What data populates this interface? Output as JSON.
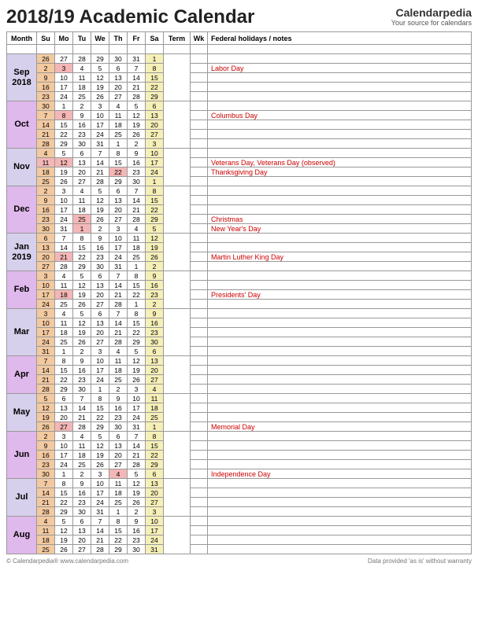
{
  "title": "2018/19 Academic Calendar",
  "brand": {
    "name": "Calendarpedia",
    "tagline": "Your source for calendars"
  },
  "header_row": [
    "Month",
    "Su",
    "Mo",
    "Tu",
    "We",
    "Th",
    "Fr",
    "Sa",
    "Term",
    "Wk",
    "Federal holidays / notes"
  ],
  "colors": {
    "month_fill_a": "#d7d0ec",
    "month_fill_b": "#dfb8ec",
    "sunday_fill": "#f2c9a0",
    "saturday_fill": "#f5efb8",
    "holiday_fill": "#f4b6b6",
    "weekday_fill": "#ffffff",
    "note_text": "#cc0000",
    "border": "#999999",
    "empty_row": "#ffffff"
  },
  "months": [
    {
      "label": "Sep 2018",
      "fill": "#d7d0ec",
      "rows": [
        {
          "days": [
            26,
            27,
            28,
            29,
            30,
            31,
            1
          ],
          "note": ""
        },
        {
          "days": [
            2,
            3,
            4,
            5,
            6,
            7,
            8
          ],
          "note": "Labor Day",
          "hol": [
            1
          ]
        },
        {
          "days": [
            9,
            10,
            11,
            12,
            13,
            14,
            15
          ],
          "note": ""
        },
        {
          "days": [
            16,
            17,
            18,
            19,
            20,
            21,
            22
          ],
          "note": ""
        },
        {
          "days": [
            23,
            24,
            25,
            26,
            27,
            28,
            29
          ],
          "note": ""
        }
      ]
    },
    {
      "label": "Oct",
      "fill": "#dfb8ec",
      "rows": [
        {
          "days": [
            30,
            1,
            2,
            3,
            4,
            5,
            6
          ],
          "note": ""
        },
        {
          "days": [
            7,
            8,
            9,
            10,
            11,
            12,
            13
          ],
          "note": "Columbus Day",
          "hol": [
            1
          ]
        },
        {
          "days": [
            14,
            15,
            16,
            17,
            18,
            19,
            20
          ],
          "note": ""
        },
        {
          "days": [
            21,
            22,
            23,
            24,
            25,
            26,
            27
          ],
          "note": ""
        },
        {
          "days": [
            28,
            29,
            30,
            31,
            1,
            2,
            3
          ],
          "note": ""
        }
      ]
    },
    {
      "label": "Nov",
      "fill": "#d7d0ec",
      "rows": [
        {
          "days": [
            4,
            5,
            6,
            7,
            8,
            9,
            10
          ],
          "note": ""
        },
        {
          "days": [
            11,
            12,
            13,
            14,
            15,
            16,
            17
          ],
          "note": "Veterans Day, Veterans Day (observed)",
          "hol": [
            0,
            1
          ]
        },
        {
          "days": [
            18,
            19,
            20,
            21,
            22,
            23,
            24
          ],
          "note": "Thanksgiving Day",
          "hol": [
            4
          ]
        },
        {
          "days": [
            25,
            26,
            27,
            28,
            29,
            30,
            1
          ],
          "note": ""
        }
      ]
    },
    {
      "label": "Dec",
      "fill": "#dfb8ec",
      "rows": [
        {
          "days": [
            2,
            3,
            4,
            5,
            6,
            7,
            8
          ],
          "note": ""
        },
        {
          "days": [
            9,
            10,
            11,
            12,
            13,
            14,
            15
          ],
          "note": ""
        },
        {
          "days": [
            16,
            17,
            18,
            19,
            20,
            21,
            22
          ],
          "note": ""
        },
        {
          "days": [
            23,
            24,
            25,
            26,
            27,
            28,
            29
          ],
          "note": "Christmas",
          "hol": [
            2
          ]
        },
        {
          "days": [
            30,
            31,
            1,
            2,
            3,
            4,
            5
          ],
          "note": "New Year's Day",
          "hol": [
            2
          ]
        }
      ]
    },
    {
      "label": "Jan 2019",
      "fill": "#d7d0ec",
      "rows": [
        {
          "days": [
            6,
            7,
            8,
            9,
            10,
            11,
            12
          ],
          "note": ""
        },
        {
          "days": [
            13,
            14,
            15,
            16,
            17,
            18,
            19
          ],
          "note": ""
        },
        {
          "days": [
            20,
            21,
            22,
            23,
            24,
            25,
            26
          ],
          "note": "Martin Luther King Day",
          "hol": [
            1
          ]
        },
        {
          "days": [
            27,
            28,
            29,
            30,
            31,
            1,
            2
          ],
          "note": ""
        }
      ]
    },
    {
      "label": "Feb",
      "fill": "#dfb8ec",
      "rows": [
        {
          "days": [
            3,
            4,
            5,
            6,
            7,
            8,
            9
          ],
          "note": ""
        },
        {
          "days": [
            10,
            11,
            12,
            13,
            14,
            15,
            16
          ],
          "note": ""
        },
        {
          "days": [
            17,
            18,
            19,
            20,
            21,
            22,
            23
          ],
          "note": "Presidents' Day",
          "hol": [
            1
          ]
        },
        {
          "days": [
            24,
            25,
            26,
            27,
            28,
            1,
            2
          ],
          "note": ""
        }
      ]
    },
    {
      "label": "Mar",
      "fill": "#d7d0ec",
      "rows": [
        {
          "days": [
            3,
            4,
            5,
            6,
            7,
            8,
            9
          ],
          "note": ""
        },
        {
          "days": [
            10,
            11,
            12,
            13,
            14,
            15,
            16
          ],
          "note": ""
        },
        {
          "days": [
            17,
            18,
            19,
            20,
            21,
            22,
            23
          ],
          "note": ""
        },
        {
          "days": [
            24,
            25,
            26,
            27,
            28,
            29,
            30
          ],
          "note": ""
        },
        {
          "days": [
            31,
            1,
            2,
            3,
            4,
            5,
            6
          ],
          "note": ""
        }
      ]
    },
    {
      "label": "Apr",
      "fill": "#dfb8ec",
      "rows": [
        {
          "days": [
            7,
            8,
            9,
            10,
            11,
            12,
            13
          ],
          "note": ""
        },
        {
          "days": [
            14,
            15,
            16,
            17,
            18,
            19,
            20
          ],
          "note": ""
        },
        {
          "days": [
            21,
            22,
            23,
            24,
            25,
            26,
            27
          ],
          "note": ""
        },
        {
          "days": [
            28,
            29,
            30,
            1,
            2,
            3,
            4
          ],
          "note": ""
        }
      ]
    },
    {
      "label": "May",
      "fill": "#d7d0ec",
      "rows": [
        {
          "days": [
            5,
            6,
            7,
            8,
            9,
            10,
            11
          ],
          "note": ""
        },
        {
          "days": [
            12,
            13,
            14,
            15,
            16,
            17,
            18
          ],
          "note": ""
        },
        {
          "days": [
            19,
            20,
            21,
            22,
            23,
            24,
            25
          ],
          "note": ""
        },
        {
          "days": [
            26,
            27,
            28,
            29,
            30,
            31,
            1
          ],
          "note": "Memorial Day",
          "hol": [
            1
          ]
        }
      ]
    },
    {
      "label": "Jun",
      "fill": "#dfb8ec",
      "rows": [
        {
          "days": [
            2,
            3,
            4,
            5,
            6,
            7,
            8
          ],
          "note": ""
        },
        {
          "days": [
            9,
            10,
            11,
            12,
            13,
            14,
            15
          ],
          "note": ""
        },
        {
          "days": [
            16,
            17,
            18,
            19,
            20,
            21,
            22
          ],
          "note": ""
        },
        {
          "days": [
            23,
            24,
            25,
            26,
            27,
            28,
            29
          ],
          "note": ""
        },
        {
          "days": [
            30,
            1,
            2,
            3,
            4,
            5,
            6
          ],
          "note": "Independence Day",
          "hol": [
            4
          ]
        }
      ]
    },
    {
      "label": "Jul",
      "fill": "#d7d0ec",
      "rows": [
        {
          "days": [
            7,
            8,
            9,
            10,
            11,
            12,
            13
          ],
          "note": ""
        },
        {
          "days": [
            14,
            15,
            16,
            17,
            18,
            19,
            20
          ],
          "note": ""
        },
        {
          "days": [
            21,
            22,
            23,
            24,
            25,
            26,
            27
          ],
          "note": ""
        },
        {
          "days": [
            28,
            29,
            30,
            31,
            1,
            2,
            3
          ],
          "note": ""
        }
      ]
    },
    {
      "label": "Aug",
      "fill": "#dfb8ec",
      "rows": [
        {
          "days": [
            4,
            5,
            6,
            7,
            8,
            9,
            10
          ],
          "note": ""
        },
        {
          "days": [
            11,
            12,
            13,
            14,
            15,
            16,
            17
          ],
          "note": ""
        },
        {
          "days": [
            18,
            19,
            20,
            21,
            22,
            23,
            24
          ],
          "note": ""
        },
        {
          "days": [
            25,
            26,
            27,
            28,
            29,
            30,
            31
          ],
          "note": ""
        }
      ]
    }
  ],
  "footer": {
    "left": "© Calendarpedia®   www.calendarpedia.com",
    "right": "Data provided 'as is' without warranty"
  }
}
